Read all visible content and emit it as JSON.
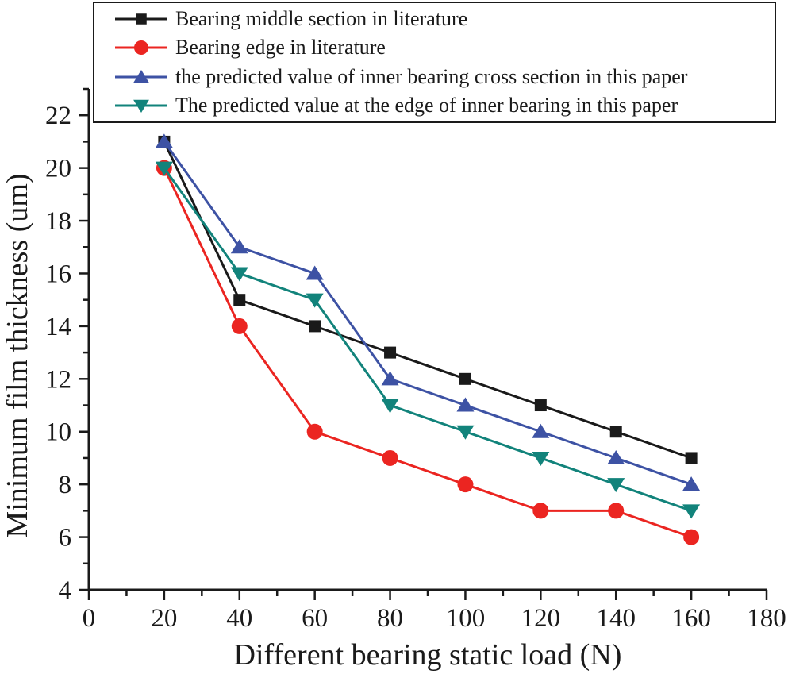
{
  "figure": {
    "background": "#ffffff",
    "axis_color": "#1a1a1a",
    "text_color": "#1a1a1a"
  },
  "chart_data": {
    "type": "line",
    "x": [
      20,
      40,
      60,
      80,
      100,
      120,
      140,
      160
    ],
    "series": [
      {
        "name": "Bearing middle section in literature",
        "marker": "square",
        "color": "#1a1a1a",
        "values": [
          21,
          15,
          14,
          13,
          12,
          11,
          10,
          9
        ]
      },
      {
        "name": "Bearing edge in literature",
        "marker": "circle",
        "color": "#EB2521",
        "values": [
          20,
          14,
          10,
          9,
          8,
          7,
          7,
          6
        ]
      },
      {
        "name": " the predicted value of inner bearing cross section in this paper",
        "marker": "triangle-up",
        "color": "#3D52A4",
        "values": [
          21,
          17,
          16,
          12,
          11,
          10,
          9,
          8
        ]
      },
      {
        "name": "The predicted value at the edge of inner bearing in this paper",
        "marker": "triangle-down",
        "color": "#12837B",
        "values": [
          20,
          16,
          15,
          11,
          10,
          9,
          8,
          7
        ]
      }
    ],
    "title": "",
    "xlabel": "Different bearing static load (N)",
    "ylabel": "Minimum film thickness (um)",
    "xlim": [
      0,
      180
    ],
    "ylim": [
      4,
      23
    ],
    "x_ticks": [
      0,
      20,
      40,
      60,
      80,
      100,
      120,
      140,
      160,
      180
    ],
    "y_ticks": [
      4,
      6,
      8,
      10,
      12,
      14,
      16,
      18,
      20,
      22
    ],
    "x_minor_step": 10,
    "y_minor_step": 1,
    "grid": false,
    "legend_position": "top"
  }
}
